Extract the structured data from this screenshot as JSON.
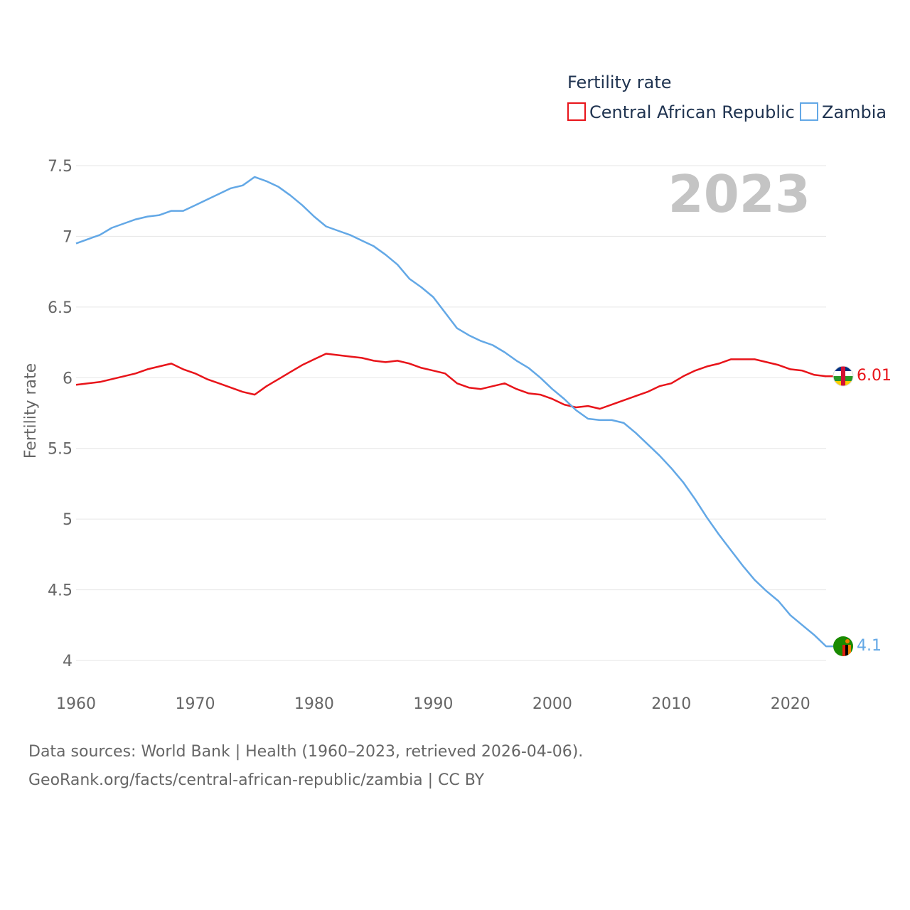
{
  "chart_data": {
    "type": "line",
    "title": "",
    "current_year": "2023",
    "xlabel": "",
    "ylabel": "Fertility rate",
    "xlim": [
      1960,
      2023
    ],
    "ylim": [
      4,
      7.5
    ],
    "x_ticks": [
      "1960",
      "1970",
      "1980",
      "1990",
      "2000",
      "2010",
      "2020"
    ],
    "y_ticks": [
      "4",
      "4.5",
      "5",
      "5.5",
      "6",
      "6.5",
      "7",
      "7.5"
    ],
    "grid": true,
    "legend": {
      "title": "Fertility rate",
      "position": "top-right",
      "entries": [
        "Central African Republic",
        "Zambia"
      ]
    },
    "x": [
      1960,
      1961,
      1962,
      1963,
      1964,
      1965,
      1966,
      1967,
      1968,
      1969,
      1970,
      1971,
      1972,
      1973,
      1974,
      1975,
      1976,
      1977,
      1978,
      1979,
      1980,
      1981,
      1982,
      1983,
      1984,
      1985,
      1986,
      1987,
      1988,
      1989,
      1990,
      1991,
      1992,
      1993,
      1994,
      1995,
      1996,
      1997,
      1998,
      1999,
      2000,
      2001,
      2002,
      2003,
      2004,
      2005,
      2006,
      2007,
      2008,
      2009,
      2010,
      2011,
      2012,
      2013,
      2014,
      2015,
      2016,
      2017,
      2018,
      2019,
      2020,
      2021,
      2022,
      2023
    ],
    "series": [
      {
        "name": "Central African Republic",
        "color": "#e8141a",
        "end_label": "6.01",
        "values": [
          5.95,
          5.96,
          5.97,
          5.99,
          6.01,
          6.03,
          6.06,
          6.08,
          6.1,
          6.06,
          6.03,
          5.99,
          5.96,
          5.93,
          5.9,
          5.88,
          5.94,
          5.99,
          6.04,
          6.09,
          6.13,
          6.17,
          6.16,
          6.15,
          6.14,
          6.12,
          6.11,
          6.12,
          6.1,
          6.07,
          6.05,
          6.03,
          5.96,
          5.93,
          5.92,
          5.94,
          5.96,
          5.92,
          5.89,
          5.88,
          5.85,
          5.81,
          5.79,
          5.8,
          5.78,
          5.81,
          5.84,
          5.87,
          5.9,
          5.94,
          5.96,
          6.01,
          6.05,
          6.08,
          6.1,
          6.13,
          6.13,
          6.13,
          6.11,
          6.09,
          6.06,
          6.05,
          6.02,
          6.01
        ]
      },
      {
        "name": "Zambia",
        "color": "#63a8e6",
        "end_label": "4.1",
        "values": [
          6.95,
          6.98,
          7.01,
          7.06,
          7.09,
          7.12,
          7.14,
          7.15,
          7.18,
          7.18,
          7.22,
          7.26,
          7.3,
          7.34,
          7.36,
          7.42,
          7.39,
          7.35,
          7.29,
          7.22,
          7.14,
          7.07,
          7.04,
          7.01,
          6.97,
          6.93,
          6.87,
          6.8,
          6.7,
          6.64,
          6.57,
          6.46,
          6.35,
          6.3,
          6.26,
          6.23,
          6.18,
          6.12,
          6.07,
          6.0,
          5.92,
          5.85,
          5.77,
          5.71,
          5.7,
          5.7,
          5.68,
          5.61,
          5.53,
          5.45,
          5.36,
          5.26,
          5.14,
          5.01,
          4.89,
          4.78,
          4.67,
          4.57,
          4.49,
          4.42,
          4.32,
          4.25,
          4.18,
          4.1
        ]
      }
    ]
  },
  "footer": {
    "line1": "Data sources: World Bank | Health (1960–2023, retrieved 2026-04-06).",
    "line2": "GeoRank.org/facts/central-african-republic/zambia | CC BY"
  },
  "icons": [
    "central-african-republic-flag-icon",
    "zambia-flag-icon"
  ]
}
